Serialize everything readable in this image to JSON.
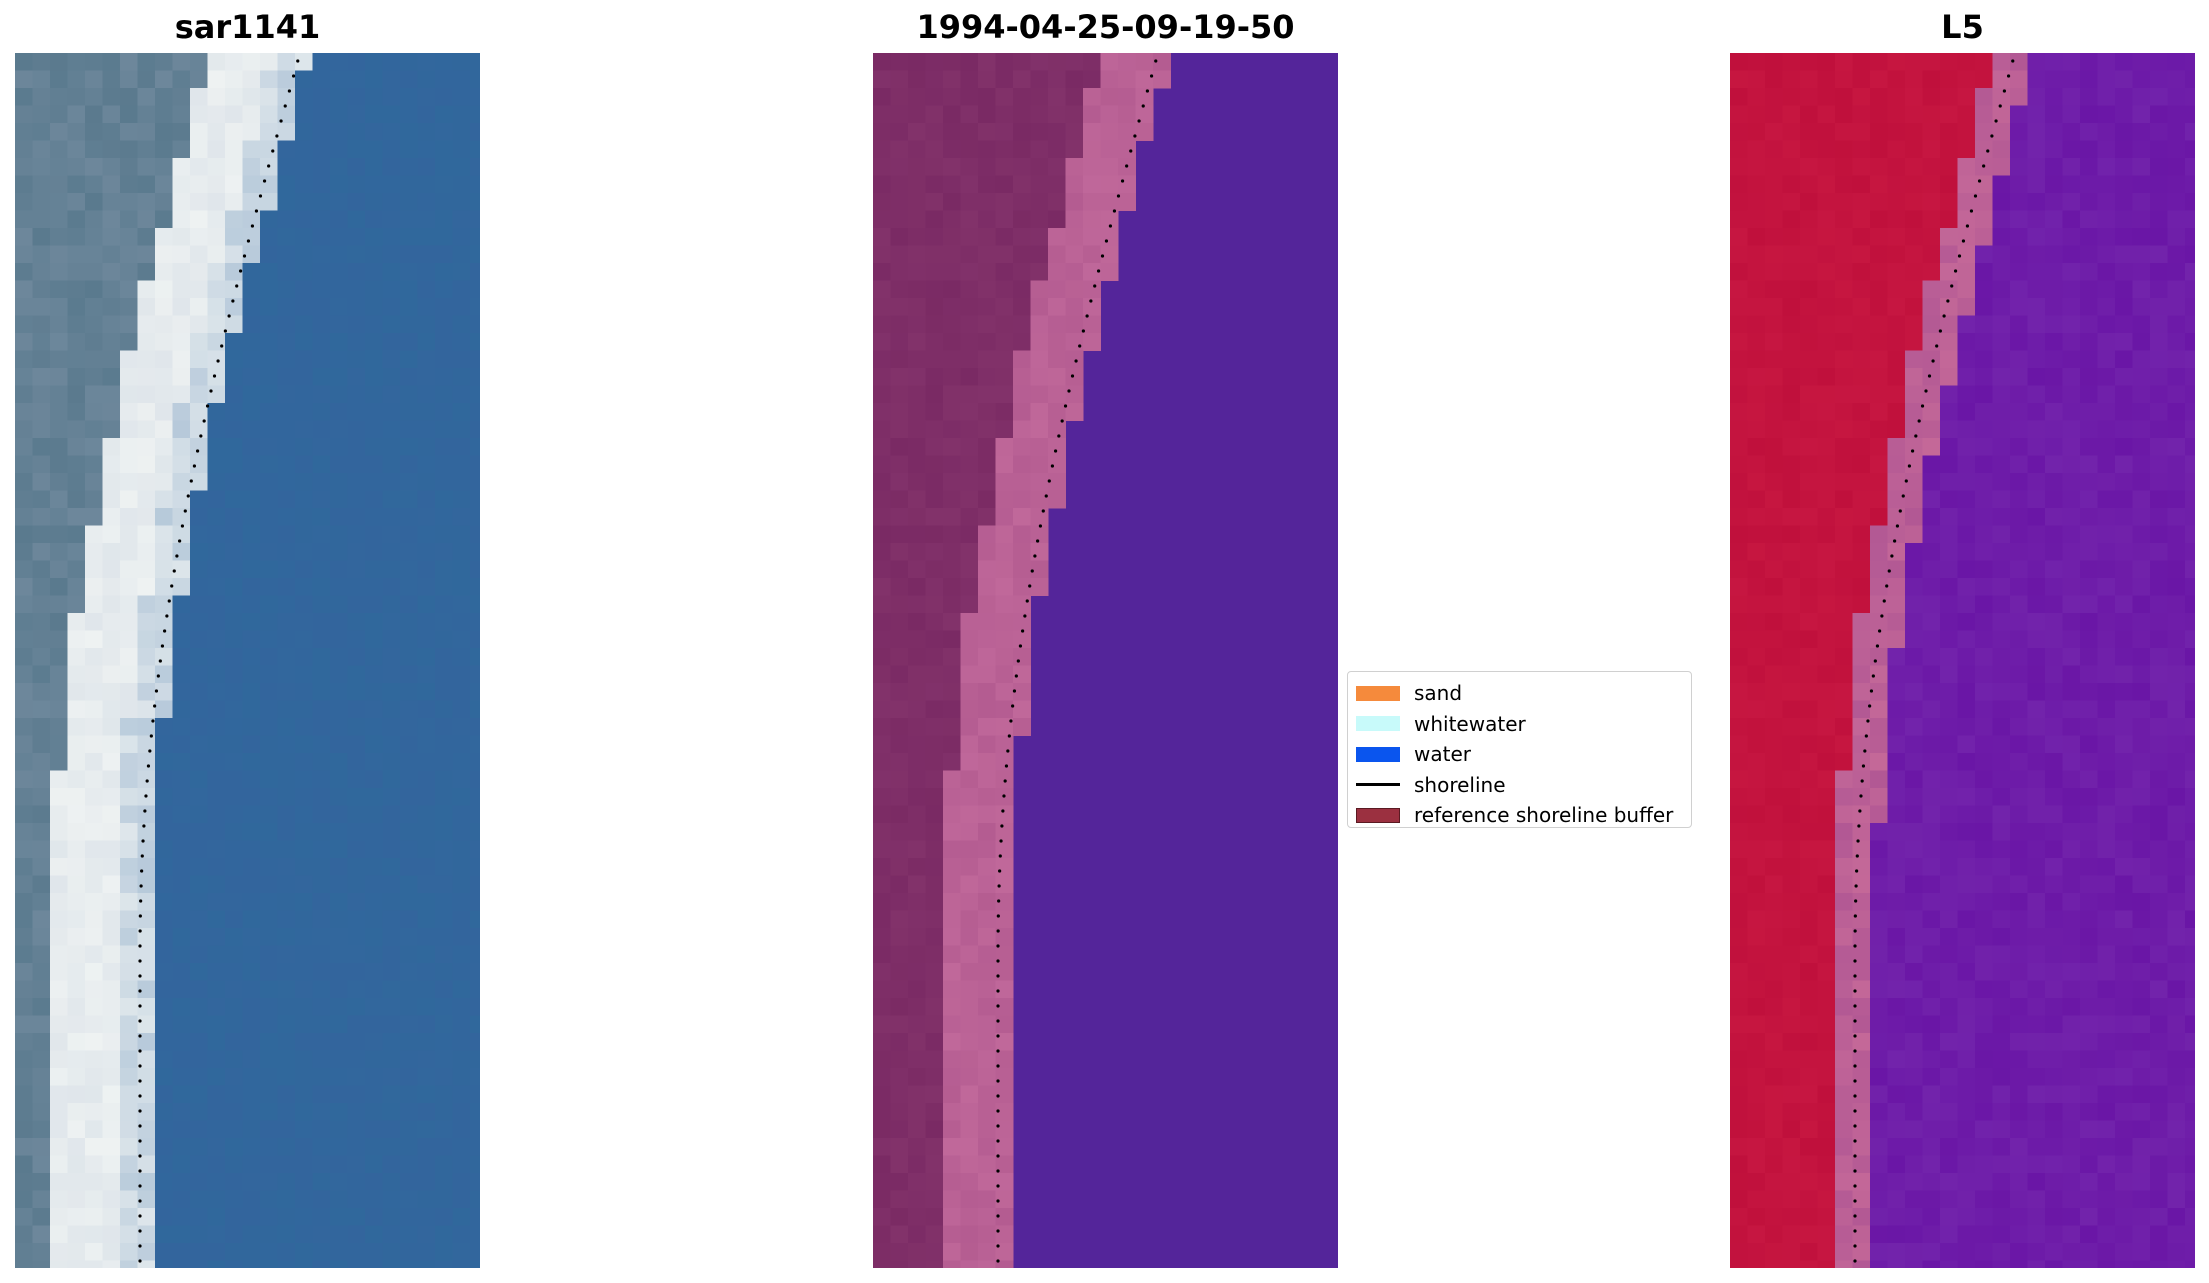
{
  "panels": [
    {
      "title": "sar1141",
      "kind": "rgb"
    },
    {
      "title": "1994-04-25-09-19-50",
      "kind": "classified"
    },
    {
      "title": "L5",
      "kind": "index"
    }
  ],
  "legend": {
    "items": [
      {
        "label": "sand",
        "color": "#f58a3c",
        "type": "patch"
      },
      {
        "label": "whitewater",
        "color": "#c8fafa",
        "type": "patch"
      },
      {
        "label": "water",
        "color": "#0a55ee",
        "type": "patch"
      },
      {
        "label": "shoreline",
        "color": "#000000",
        "type": "line"
      },
      {
        "label": "reference shoreline buffer",
        "color": "#9b3040",
        "type": "patch"
      }
    ]
  },
  "colors": {
    "rgb_water": "#30689c",
    "rgb_land": "#5a7a8e",
    "rgb_surf": "#eef2f2",
    "classified_land": "#7a2a64",
    "classified_sand": "#c0689a",
    "classified_water": "#54259a",
    "index_land": "#c0103c",
    "index_transition": "#c46898",
    "index_water": "#6a16a6"
  }
}
